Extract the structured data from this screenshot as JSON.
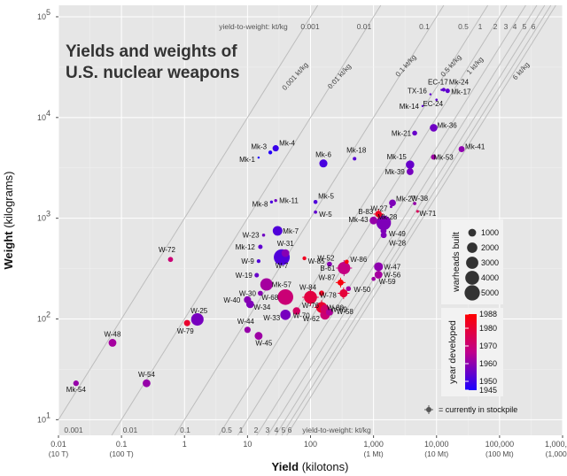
{
  "chart_data": {
    "type": "scatter",
    "title_lines": [
      "Yields and weights of",
      "U.S. nuclear weapons"
    ],
    "xlabel_bold": "Yield",
    "xlabel_rest": " (kilotons)",
    "ylabel_bold": "Weight",
    "ylabel_rest": " (kilograms)",
    "x_scale": "log",
    "y_scale": "log",
    "xlim": [
      0.01,
      1000000
    ],
    "ylim": [
      7,
      130000
    ],
    "x_ticks": [
      {
        "value": 0.01,
        "label": "0.01",
        "sub": "(10 T)"
      },
      {
        "value": 0.1,
        "label": "0.1",
        "sub": "(100 T)"
      },
      {
        "value": 1,
        "label": "1",
        "sub": ""
      },
      {
        "value": 10,
        "label": "10",
        "sub": ""
      },
      {
        "value": 100,
        "label": "100",
        "sub": ""
      },
      {
        "value": 1000,
        "label": "1,000",
        "sub": "(1 Mt)"
      },
      {
        "value": 10000,
        "label": "10,000",
        "sub": "(10 Mt)"
      },
      {
        "value": 100000,
        "label": "100,000",
        "sub": "(100 Mt)"
      },
      {
        "value": 1000000,
        "label": "1,000,000",
        "sub": "(1,000 Mt)"
      }
    ],
    "y_ticks": [
      {
        "value": 10,
        "exp": "1"
      },
      {
        "value": 100,
        "exp": "2"
      },
      {
        "value": 1000,
        "exp": "3"
      },
      {
        "value": 10000,
        "exp": "4"
      },
      {
        "value": 100000,
        "exp": "5"
      }
    ],
    "ratio_lines": [
      0.001,
      0.01,
      0.1,
      0.5,
      1,
      2,
      3,
      4,
      5,
      6
    ],
    "ratio_top_labels": [
      "yield-to-weight: kt/kg",
      "0.001",
      "0.01",
      "0.1",
      "0.5",
      "1",
      "2",
      "3",
      "4",
      "5",
      "6"
    ],
    "ratio_bottom_labels": [
      "0.001",
      "0.01",
      "0.1",
      "0.5",
      "1",
      "2",
      "3",
      "4",
      "5",
      "6",
      "yield-to-weight: kt/kg"
    ],
    "ratio_rot_labels": [
      "0.001 kt/kg",
      "0.01 kt/kg",
      "0.1 kt/kg",
      "0.5 kt/kg",
      "1 kt/kg",
      "6 kt/kg"
    ],
    "points": [
      {
        "name": "Mk-54",
        "x": 0.019,
        "y": 23,
        "year": 1961,
        "built": 400,
        "stock": false
      },
      {
        "name": "W-48",
        "x": 0.072,
        "y": 58,
        "year": 1963,
        "built": 1000,
        "stock": false
      },
      {
        "name": "W-54",
        "x": 0.25,
        "y": 23,
        "year": 1961,
        "built": 1000,
        "stock": false
      },
      {
        "name": "W-72",
        "x": 0.6,
        "y": 390,
        "year": 1970,
        "built": 300,
        "stock": false
      },
      {
        "name": "W-79",
        "x": 1.1,
        "y": 91,
        "year": 1981,
        "built": 550,
        "stock": false
      },
      {
        "name": "W-25",
        "x": 1.6,
        "y": 99,
        "year": 1957,
        "built": 3150,
        "stock": false
      },
      {
        "name": "W-44",
        "x": 10,
        "y": 78,
        "year": 1961,
        "built": 575,
        "stock": false
      },
      {
        "name": "W-45",
        "x": 15,
        "y": 68,
        "year": 1962,
        "built": 1000,
        "stock": false
      },
      {
        "name": "W-40",
        "x": 10,
        "y": 155,
        "year": 1959,
        "built": 800,
        "stock": false
      },
      {
        "name": "W-34",
        "x": 11,
        "y": 140,
        "year": 1958,
        "built": 1000,
        "stock": false
      },
      {
        "name": "W-30",
        "x": 16,
        "y": 180,
        "year": 1959,
        "built": 300,
        "stock": false
      },
      {
        "name": "Mk-57",
        "x": 20,
        "y": 220,
        "year": 1963,
        "built": 3100,
        "stock": false
      },
      {
        "name": "W-19",
        "x": 14,
        "y": 272,
        "year": 1955,
        "built": 200,
        "stock": false
      },
      {
        "name": "W-9",
        "x": 15,
        "y": 375,
        "year": 1952,
        "built": 110,
        "stock": false
      },
      {
        "name": "W-7",
        "x": 35,
        "y": 410,
        "year": 1952,
        "built": 5500,
        "stock": false
      },
      {
        "name": "W-31",
        "x": 40,
        "y": 450,
        "year": 1959,
        "built": 1000,
        "stock": false
      },
      {
        "name": "W-68",
        "x": 40,
        "y": 165,
        "year": 1970,
        "built": 5250,
        "stock": false
      },
      {
        "name": "W-33",
        "x": 40,
        "y": 110,
        "year": 1957,
        "built": 2000,
        "stock": false
      },
      {
        "name": "W-70",
        "x": 60,
        "y": 120,
        "year": 1973,
        "built": 900,
        "stock": false
      },
      {
        "name": "W-76",
        "x": 100,
        "y": 164,
        "year": 1978,
        "built": 3400,
        "stock": true
      },
      {
        "name": "W-85",
        "x": 80,
        "y": 400,
        "year": 1983,
        "built": 120,
        "stock": false
      },
      {
        "name": "Mk-12",
        "x": 16,
        "y": 520,
        "year": 1954,
        "built": 200,
        "stock": false
      },
      {
        "name": "W-23",
        "x": 18,
        "y": 680,
        "year": 1956,
        "built": 50,
        "stock": false
      },
      {
        "name": "Mk-7",
        "x": 30,
        "y": 750,
        "year": 1952,
        "built": 1700,
        "stock": false
      },
      {
        "name": "Mk-8",
        "x": 24,
        "y": 1450,
        "year": 1951,
        "built": 40,
        "stock": false
      },
      {
        "name": "Mk-11",
        "x": 28,
        "y": 1500,
        "year": 1956,
        "built": 40,
        "stock": false
      },
      {
        "name": "Mk-5",
        "x": 120,
        "y": 1450,
        "year": 1952,
        "built": 140,
        "stock": false
      },
      {
        "name": "W-5",
        "x": 120,
        "y": 1150,
        "year": 1954,
        "built": 65,
        "stock": false
      },
      {
        "name": "Mk-1",
        "x": 15,
        "y": 4000,
        "year": 1945,
        "built": 5,
        "stock": false
      },
      {
        "name": "Mk-3",
        "x": 23,
        "y": 4500,
        "year": 1946,
        "built": 120,
        "stock": false
      },
      {
        "name": "Mk-4",
        "x": 28,
        "y": 4950,
        "year": 1949,
        "built": 550,
        "stock": false
      },
      {
        "name": "Mk-6",
        "x": 160,
        "y": 3500,
        "year": 1951,
        "built": 1100,
        "stock": false
      },
      {
        "name": "Mk-18",
        "x": 500,
        "y": 3900,
        "year": 1953,
        "built": 90,
        "stock": false
      },
      {
        "name": "W-52",
        "x": 200,
        "y": 350,
        "year": 1959,
        "built": 300,
        "stock": false
      },
      {
        "name": "W-86",
        "x": 375,
        "y": 370,
        "year": 1986,
        "built": 150,
        "stock": false
      },
      {
        "name": "B-61",
        "x": 340,
        "y": 320,
        "year": 1968,
        "built": 3150,
        "stock": true
      },
      {
        "name": "W-84",
        "x": 150,
        "y": 180,
        "year": 1983,
        "built": 350,
        "stock": false
      },
      {
        "name": "W-87",
        "x": 300,
        "y": 230,
        "year": 1986,
        "built": 530,
        "stock": true
      },
      {
        "name": "W-78",
        "x": 335,
        "y": 180,
        "year": 1979,
        "built": 1100,
        "stock": true
      },
      {
        "name": "W-80",
        "x": 150,
        "y": 130,
        "year": 1981,
        "built": 2300,
        "stock": true
      },
      {
        "name": "W-69",
        "x": 170,
        "y": 125,
        "year": 1972,
        "built": 1500,
        "stock": false
      },
      {
        "name": "W-58",
        "x": 200,
        "y": 117,
        "year": 1964,
        "built": 800,
        "stock": false
      },
      {
        "name": "W-62",
        "x": 170,
        "y": 110,
        "year": 1970,
        "built": 1700,
        "stock": false
      },
      {
        "name": "W-50",
        "x": 400,
        "y": 200,
        "year": 1963,
        "built": 280,
        "stock": false
      },
      {
        "name": "W-47",
        "x": 1200,
        "y": 330,
        "year": 1960,
        "built": 1400,
        "stock": false
      },
      {
        "name": "W-56",
        "x": 1200,
        "y": 275,
        "year": 1963,
        "built": 1000,
        "stock": false
      },
      {
        "name": "W-59",
        "x": 1000,
        "y": 250,
        "year": 1962,
        "built": 150,
        "stock": false
      },
      {
        "name": "B-83",
        "x": 1200,
        "y": 1100,
        "year": 1983,
        "built": 650,
        "stock": true
      },
      {
        "name": "W-27",
        "x": 1900,
        "y": 1300,
        "year": 1958,
        "built": 20,
        "stock": false
      },
      {
        "name": "Mk-27",
        "x": 2000,
        "y": 1420,
        "year": 1958,
        "built": 700,
        "stock": false
      },
      {
        "name": "Mk-43",
        "x": 1000,
        "y": 950,
        "year": 1961,
        "built": 1000,
        "stock": false
      },
      {
        "name": "Mk-28",
        "x": 1450,
        "y": 900,
        "year": 1958,
        "built": 4500,
        "stock": false
      },
      {
        "name": "W-49",
        "x": 1440,
        "y": 750,
        "year": 1958,
        "built": 500,
        "stock": false
      },
      {
        "name": "W-28",
        "x": 1450,
        "y": 680,
        "year": 1958,
        "built": 500,
        "stock": false
      },
      {
        "name": "W-38",
        "x": 4500,
        "y": 1400,
        "year": 1961,
        "built": 70,
        "stock": false
      },
      {
        "name": "W-71",
        "x": 5000,
        "y": 1170,
        "year": 1974,
        "built": 30,
        "stock": false
      },
      {
        "name": "Mk-15",
        "x": 3800,
        "y": 3400,
        "year": 1955,
        "built": 1200,
        "stock": false
      },
      {
        "name": "Mk-39",
        "x": 3800,
        "y": 2900,
        "year": 1957,
        "built": 700,
        "stock": false
      },
      {
        "name": "Mk-21",
        "x": 4500,
        "y": 7000,
        "year": 1955,
        "built": 275,
        "stock": false
      },
      {
        "name": "Mk-36",
        "x": 9000,
        "y": 7900,
        "year": 1956,
        "built": 940,
        "stock": false
      },
      {
        "name": "Mk-53",
        "x": 9000,
        "y": 4050,
        "year": 1962,
        "built": 340,
        "stock": false
      },
      {
        "name": "Mk-41",
        "x": 25000,
        "y": 4850,
        "year": 1960,
        "built": 500,
        "stock": false
      },
      {
        "name": "Mk-14",
        "x": 6000,
        "y": 13000,
        "year": 1954,
        "built": 5,
        "stock": false
      },
      {
        "name": "TX-16",
        "x": 8000,
        "y": 17000,
        "year": 1954,
        "built": 5,
        "stock": false
      },
      {
        "name": "EC-24",
        "x": 10000,
        "y": 15000,
        "year": 1954,
        "built": 10,
        "stock": false
      },
      {
        "name": "EC-17",
        "x": 12000,
        "y": 18800,
        "year": 1954,
        "built": 5,
        "stock": false
      },
      {
        "name": "Mk-24",
        "x": 13000,
        "y": 18900,
        "year": 1954,
        "built": 105,
        "stock": false
      },
      {
        "name": "Mk-17",
        "x": 15000,
        "y": 18400,
        "year": 1954,
        "built": 200,
        "stock": false
      }
    ],
    "size_legend": {
      "title": "warheads built",
      "entries": [
        {
          "value": 1000,
          "label": "1000"
        },
        {
          "value": 2000,
          "label": "2000"
        },
        {
          "value": 3000,
          "label": "3000"
        },
        {
          "value": 4000,
          "label": "4000"
        },
        {
          "value": 5000,
          "label": "5000"
        }
      ]
    },
    "color_legend": {
      "title": "year developed",
      "min_year": 1945,
      "max_year": 1988,
      "ticks": [
        {
          "value": 1988,
          "label": "1988"
        },
        {
          "value": 1980,
          "label": "1980"
        },
        {
          "value": 1970,
          "label": "1970"
        },
        {
          "value": 1960,
          "label": "1960"
        },
        {
          "value": 1950,
          "label": "1950"
        },
        {
          "value": 1945,
          "label": "1945"
        }
      ],
      "colors": {
        "low": "#1a00ff",
        "mid": "#c0008c",
        "high": "#ff0000"
      }
    },
    "stockpile_note": "= currently in stockpile",
    "panel_bg": "#e6e6e6"
  }
}
